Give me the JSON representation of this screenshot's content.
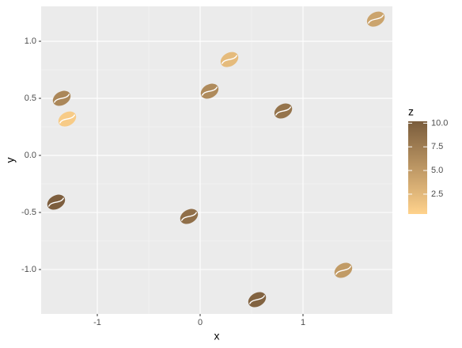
{
  "chart_data": {
    "type": "scatter",
    "x_label": "x",
    "y_label": "y",
    "x": [
      1.708,
      0.285,
      0.092,
      -1.346,
      -1.292,
      0.808,
      -1.4,
      -0.108,
      1.392,
      0.554
    ],
    "y": [
      1.194,
      0.84,
      0.5625,
      0.5,
      0.319,
      0.389,
      -0.41,
      -0.535,
      -1.007,
      -1.264
    ],
    "z": [
      4.2,
      2.3,
      6.3,
      6.6,
      1.0,
      8.2,
      10.0,
      8.6,
      5.0,
      9.6
    ],
    "xlim": [
      -1.546,
      1.869
    ],
    "ylim": [
      -1.389,
      1.306
    ],
    "xticks": [
      -1,
      0,
      1
    ],
    "yticks": [
      {
        "value": 1,
        "label": "1.0"
      },
      {
        "value": 0.5,
        "label": "0.5"
      },
      {
        "value": 0,
        "label": "0.0"
      },
      {
        "value": -0.5,
        "label": "-0.5"
      },
      {
        "value": -1,
        "label": "-1.0"
      }
    ],
    "grid": true,
    "colorbar": {
      "title": "z",
      "zlim": [
        0.4,
        10.2
      ],
      "low_color": "#ffd28c",
      "high_color": "#7a5c3c",
      "ticks": [
        {
          "value": 10,
          "label": "10.0"
        },
        7.5,
        {
          "value": 5,
          "label": "5.0"
        },
        2.5
      ]
    }
  }
}
